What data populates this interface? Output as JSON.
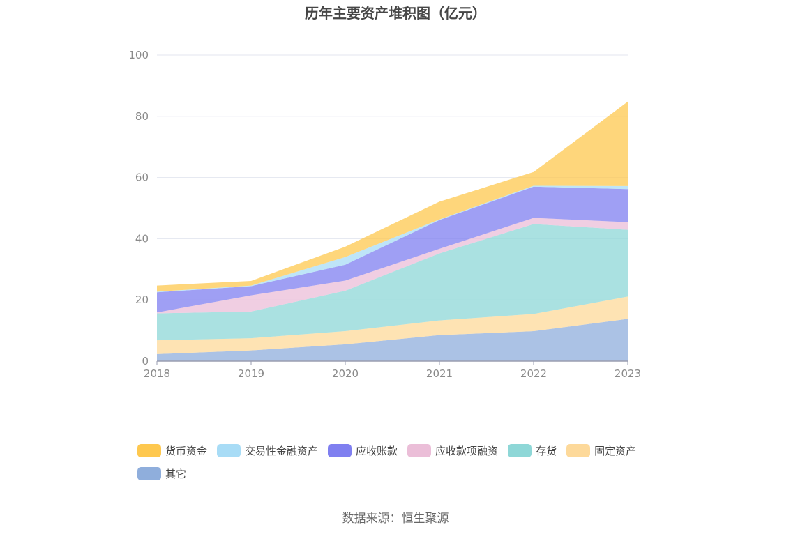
{
  "page": {
    "title": "历年主要资产堆积图（亿元）",
    "source": "数据来源：恒生聚源"
  },
  "chart_data": {
    "type": "area",
    "stacked": true,
    "title": "历年主要资产堆积图（亿元）",
    "x": [
      "2018",
      "2019",
      "2020",
      "2021",
      "2022",
      "2023"
    ],
    "ylim": [
      0,
      100
    ],
    "yticks": [
      0,
      20,
      40,
      60,
      80,
      100
    ],
    "grid": true,
    "legend_position": "bottom",
    "series": [
      {
        "name": "其它",
        "color": "#8faedc",
        "values": [
          2.3,
          3.5,
          5.5,
          8.5,
          9.8,
          13.8
        ]
      },
      {
        "name": "固定资产",
        "color": "#fdd99a",
        "values": [
          4.5,
          4.0,
          4.3,
          4.8,
          5.6,
          7.3
        ]
      },
      {
        "name": "存货",
        "color": "#8ed7d7",
        "values": [
          8.8,
          8.7,
          13.2,
          21.9,
          29.4,
          21.8
        ]
      },
      {
        "name": "应收款项融资",
        "color": "#ebbed8",
        "values": [
          0.3,
          5.3,
          3.3,
          1.5,
          2.0,
          2.5
        ]
      },
      {
        "name": "应收账款",
        "color": "#7f7ff0",
        "values": [
          6.6,
          3.0,
          5.2,
          9.4,
          10.2,
          10.8
        ]
      },
      {
        "name": "交易性金融资产",
        "color": "#a8dcf6",
        "values": [
          0.2,
          0.2,
          2.5,
          0.2,
          0.3,
          1.0
        ]
      },
      {
        "name": "货币资金",
        "color": "#fec84f",
        "values": [
          2.0,
          1.5,
          3.4,
          5.8,
          4.5,
          27.6
        ]
      }
    ]
  },
  "legend": [
    {
      "label": "货币资金",
      "color": "#fec84f"
    },
    {
      "label": "交易性金融资产",
      "color": "#a8dcf6"
    },
    {
      "label": "应收账款",
      "color": "#7f7ff0"
    },
    {
      "label": "应收款项融资",
      "color": "#ebbed8"
    },
    {
      "label": "存货",
      "color": "#8ed7d7"
    },
    {
      "label": "固定资产",
      "color": "#fdd99a"
    },
    {
      "label": "其它",
      "color": "#8faedc"
    }
  ]
}
